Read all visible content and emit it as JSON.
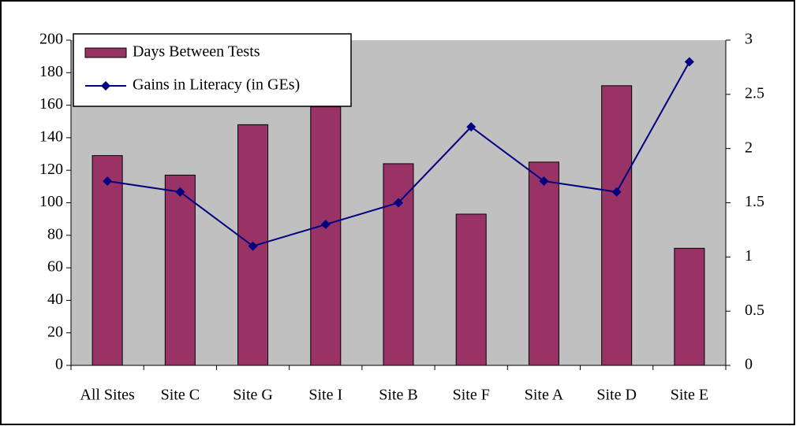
{
  "chart_data": {
    "type": "bar",
    "categories": [
      "All Sites",
      "Site C",
      "Site G",
      "Site I",
      "Site B",
      "Site F",
      "Site A",
      "Site D",
      "Site E"
    ],
    "series": [
      {
        "name": "Days Between Tests",
        "type": "bar",
        "color": "#993366",
        "values": [
          129,
          117,
          148,
          159,
          124,
          93,
          125,
          172,
          72
        ]
      },
      {
        "name": "Gains in Literacy (in GEs)",
        "type": "line",
        "axis": "y2",
        "color": "#000080",
        "values": [
          1.7,
          1.6,
          1.1,
          1.3,
          1.5,
          2.2,
          1.7,
          1.6,
          2.8
        ]
      }
    ],
    "ylim": [
      0,
      200
    ],
    "yticks": [
      0,
      20,
      40,
      60,
      80,
      100,
      120,
      140,
      160,
      180,
      200
    ],
    "y2lim": [
      0,
      3
    ],
    "y2ticks": [
      0,
      0.5,
      1,
      1.5,
      2,
      2.5,
      3
    ],
    "plot_background": "#c0c0c0",
    "legend": "top-left"
  }
}
